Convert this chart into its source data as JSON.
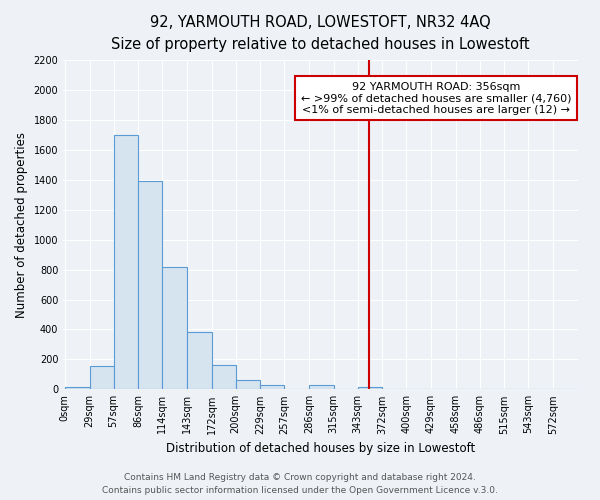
{
  "title": "92, YARMOUTH ROAD, LOWESTOFT, NR32 4AQ",
  "subtitle": "Size of property relative to detached houses in Lowestoft",
  "xlabel": "Distribution of detached houses by size in Lowestoft",
  "ylabel": "Number of detached properties",
  "bar_labels": [
    "0sqm",
    "29sqm",
    "57sqm",
    "86sqm",
    "114sqm",
    "143sqm",
    "172sqm",
    "200sqm",
    "229sqm",
    "257sqm",
    "286sqm",
    "315sqm",
    "343sqm",
    "372sqm",
    "400sqm",
    "429sqm",
    "458sqm",
    "486sqm",
    "515sqm",
    "543sqm",
    "572sqm"
  ],
  "bar_values": [
    15,
    155,
    1700,
    1390,
    820,
    380,
    165,
    65,
    30,
    0,
    30,
    0,
    15,
    0,
    0,
    0,
    0,
    0,
    0,
    0,
    0
  ],
  "bin_edges": [
    0,
    29,
    57,
    86,
    114,
    143,
    172,
    200,
    229,
    257,
    286,
    315,
    343,
    372,
    400,
    429,
    458,
    486,
    515,
    543,
    572
  ],
  "bar_color": "#d6e4f0",
  "bar_edge_color": "#5b9bd5",
  "vline_x": 356,
  "vline_color": "#cc0000",
  "annotation_title": "92 YARMOUTH ROAD: 356sqm",
  "annotation_line1": "← >99% of detached houses are smaller (4,760)",
  "annotation_line2": "<1% of semi-detached houses are larger (12) →",
  "ylim": [
    0,
    2200
  ],
  "yticks": [
    0,
    200,
    400,
    600,
    800,
    1000,
    1200,
    1400,
    1600,
    1800,
    2000,
    2200
  ],
  "footer1": "Contains HM Land Registry data © Crown copyright and database right 2024.",
  "footer2": "Contains public sector information licensed under the Open Government Licence v.3.0.",
  "background_color": "#eef2f7",
  "grid_color": "#ffffff",
  "title_fontsize": 10.5,
  "subtitle_fontsize": 9.5,
  "axis_label_fontsize": 8.5,
  "tick_fontsize": 7,
  "annotation_fontsize": 8,
  "footer_fontsize": 6.5
}
